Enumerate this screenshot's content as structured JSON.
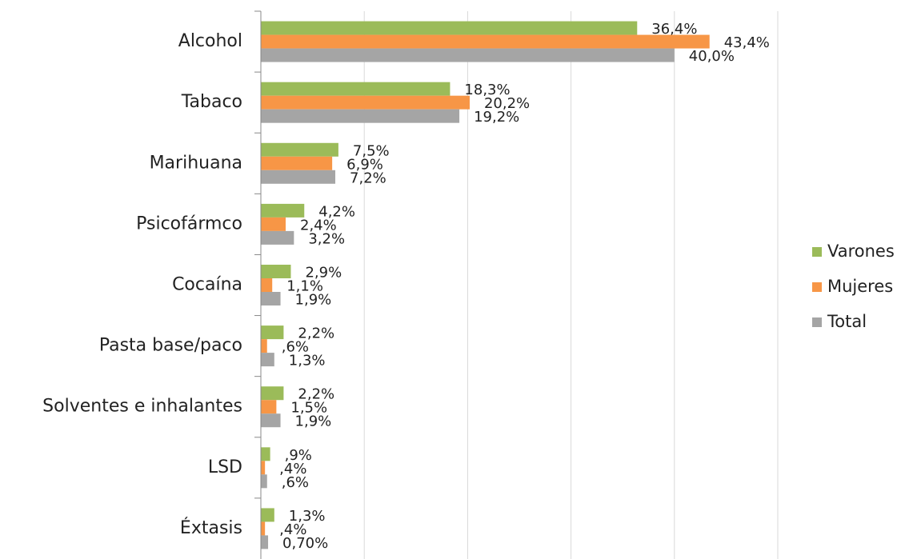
{
  "chart_data": {
    "type": "bar",
    "orientation": "horizontal",
    "categories": [
      "Alcohol",
      "Tabaco",
      "Marihuana",
      "Psicofármco",
      "Cocaína",
      "Pasta base/paco",
      "Solventes e inhalantes",
      "LSD",
      "Éxtasis"
    ],
    "series": [
      {
        "name": "Varones",
        "color": "#9bbb59",
        "values": [
          36.4,
          18.3,
          7.5,
          4.2,
          2.9,
          2.2,
          2.2,
          0.9,
          1.3
        ],
        "value_labels": [
          "36,4%",
          "18,3%",
          "7,5%",
          "4,2%",
          "2,9%",
          "2,2%",
          "2,2%",
          ",9%",
          "1,3%"
        ]
      },
      {
        "name": "Mujeres",
        "color": "#f79646",
        "values": [
          43.4,
          20.2,
          6.9,
          2.4,
          1.1,
          0.6,
          1.5,
          0.4,
          0.4
        ],
        "value_labels": [
          "43,4%",
          "20,2%",
          "6,9%",
          "2,4%",
          "1,1%",
          ",6%",
          "1,5%",
          ",4%",
          ",4%"
        ]
      },
      {
        "name": "Total",
        "color": "#a5a5a5",
        "values": [
          40.0,
          19.2,
          7.2,
          3.2,
          1.9,
          1.3,
          1.9,
          0.6,
          0.7
        ],
        "value_labels": [
          "40,0%",
          "19,2%",
          "7,2%",
          "3,2%",
          "1,9%",
          "1,3%",
          "1,9%",
          ",6%",
          "0,70%"
        ]
      }
    ],
    "xlim": [
      0,
      50
    ],
    "xticks": [
      0,
      10,
      20,
      30,
      40,
      50
    ],
    "grid": true,
    "legend": "right"
  }
}
